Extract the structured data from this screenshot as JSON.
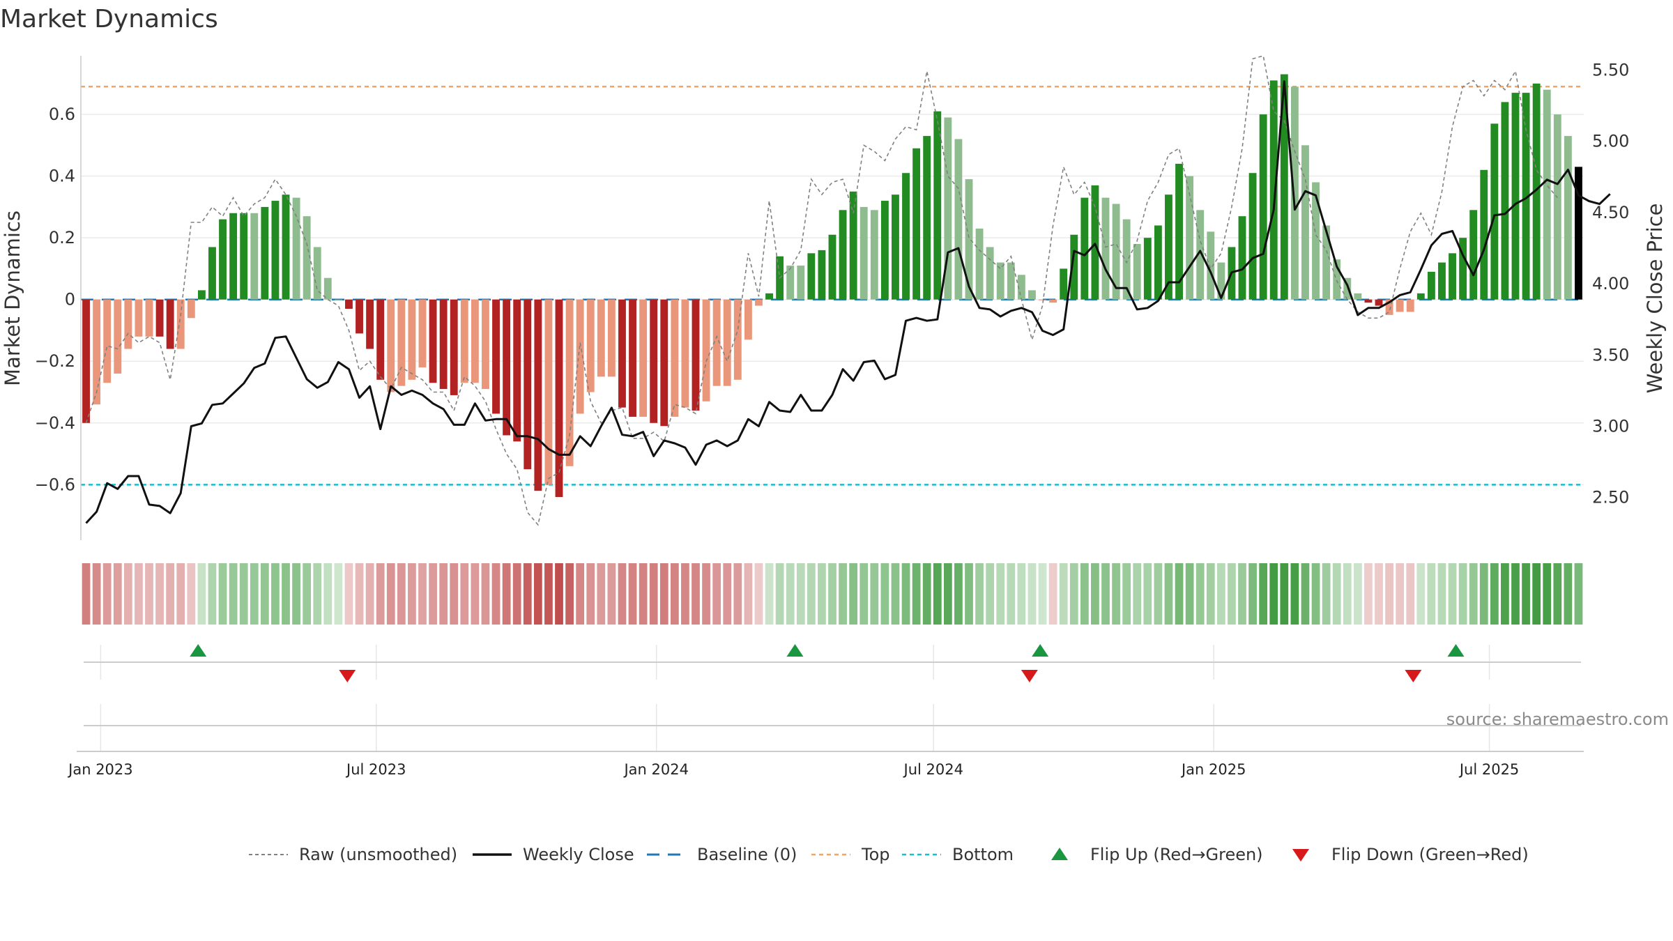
{
  "chart_data": {
    "type": "bar",
    "title": "Market Dynamics",
    "ylabel": "Market Dynamics",
    "y2label": "Weekly Close Price",
    "ylim": [
      -0.78,
      0.79
    ],
    "y2lim": [
      2.2,
      5.6
    ],
    "y_ticks": [
      "−0.6",
      "−0.4",
      "−0.2",
      "0",
      "0.2",
      "0.4",
      "0.6"
    ],
    "y2_ticks": [
      "2.50",
      "3.00",
      "3.50",
      "4.00",
      "4.50",
      "5.00",
      "5.50"
    ],
    "x_start": "2022-12-19",
    "x_end": "2025-09-01",
    "x_ticks": [
      "Jan 2023",
      "Jul 2023",
      "Jan 2024",
      "Jul 2024",
      "Jan 2025",
      "Jul 2025"
    ],
    "x_tick_dates": [
      "2023-01-01",
      "2023-07-01",
      "2024-01-01",
      "2024-07-01",
      "2025-01-01",
      "2025-07-01"
    ],
    "top_level": 0.69,
    "bottom_level": -0.6,
    "baseline": 0,
    "dynamics": [
      -0.4,
      -0.34,
      -0.27,
      -0.24,
      -0.16,
      -0.12,
      -0.12,
      -0.12,
      -0.16,
      -0.16,
      -0.06,
      0.03,
      0.17,
      0.26,
      0.28,
      0.28,
      0.28,
      0.3,
      0.32,
      0.34,
      0.33,
      0.27,
      0.17,
      0.07,
      0.0,
      -0.03,
      -0.11,
      -0.16,
      -0.26,
      -0.3,
      -0.28,
      -0.26,
      -0.22,
      -0.27,
      -0.29,
      -0.31,
      -0.27,
      -0.27,
      -0.29,
      -0.37,
      -0.44,
      -0.46,
      -0.55,
      -0.62,
      -0.6,
      -0.64,
      -0.54,
      -0.37,
      -0.3,
      -0.25,
      -0.25,
      -0.35,
      -0.38,
      -0.38,
      -0.4,
      -0.41,
      -0.38,
      -0.35,
      -0.36,
      -0.33,
      -0.28,
      -0.28,
      -0.26,
      -0.13,
      -0.02,
      0.02,
      0.14,
      0.11,
      0.11,
      0.15,
      0.16,
      0.21,
      0.29,
      0.35,
      0.3,
      0.29,
      0.32,
      0.34,
      0.41,
      0.49,
      0.53,
      0.61,
      0.59,
      0.52,
      0.39,
      0.23,
      0.17,
      0.12,
      0.12,
      0.08,
      0.03,
      0.0,
      -0.01,
      0.1,
      0.21,
      0.33,
      0.37,
      0.33,
      0.31,
      0.26,
      0.18,
      0.2,
      0.24,
      0.34,
      0.44,
      0.4,
      0.29,
      0.22,
      0.12,
      0.17,
      0.27,
      0.41,
      0.6,
      0.71,
      0.73,
      0.69,
      0.5,
      0.38,
      0.24,
      0.13,
      0.07,
      0.02,
      -0.01,
      -0.02,
      -0.05,
      -0.04,
      -0.04,
      0.02,
      0.09,
      0.12,
      0.15,
      0.2,
      0.29,
      0.42,
      0.57,
      0.64,
      0.67,
      0.67,
      0.7,
      0.68,
      0.6,
      0.53,
      0.43
    ],
    "bar_shades": [
      "#b22222",
      "#e9967a",
      "#e9967a",
      "#e9967a",
      "#e9967a",
      "#e9967a",
      "#e9967a",
      "#b22222",
      "#b22222",
      "#e9967a",
      "#e9967a",
      "#228b22",
      "#228b22",
      "#228b22",
      "#228b22",
      "#228b22",
      "#8fbc8f",
      "#228b22",
      "#228b22",
      "#228b22",
      "#8fbc8f",
      "#8fbc8f",
      "#8fbc8f",
      "#8fbc8f",
      "#8fbc8f",
      "#b22222",
      "#b22222",
      "#b22222",
      "#b22222",
      "#e9967a",
      "#e9967a",
      "#e9967a",
      "#e9967a",
      "#b22222",
      "#b22222",
      "#b22222",
      "#e9967a",
      "#e9967a",
      "#e9967a",
      "#b22222",
      "#b22222",
      "#b22222",
      "#b22222",
      "#b22222",
      "#e9967a",
      "#b22222",
      "#e9967a",
      "#e9967a",
      "#e9967a",
      "#e9967a",
      "#e9967a",
      "#b22222",
      "#b22222",
      "#e9967a",
      "#b22222",
      "#b22222",
      "#e9967a",
      "#e9967a",
      "#b22222",
      "#e9967a",
      "#e9967a",
      "#e9967a",
      "#e9967a",
      "#e9967a",
      "#e9967a",
      "#228b22",
      "#228b22",
      "#8fbc8f",
      "#8fbc8f",
      "#228b22",
      "#228b22",
      "#228b22",
      "#228b22",
      "#228b22",
      "#8fbc8f",
      "#8fbc8f",
      "#228b22",
      "#228b22",
      "#228b22",
      "#228b22",
      "#228b22",
      "#228b22",
      "#8fbc8f",
      "#8fbc8f",
      "#8fbc8f",
      "#8fbc8f",
      "#8fbc8f",
      "#8fbc8f",
      "#8fbc8f",
      "#8fbc8f",
      "#8fbc8f",
      "#e9967a",
      "#e9967a",
      "#228b22",
      "#228b22",
      "#228b22",
      "#228b22",
      "#8fbc8f",
      "#8fbc8f",
      "#8fbc8f",
      "#8fbc8f",
      "#228b22",
      "#228b22",
      "#228b22",
      "#228b22",
      "#8fbc8f",
      "#8fbc8f",
      "#8fbc8f",
      "#8fbc8f",
      "#228b22",
      "#228b22",
      "#228b22",
      "#228b22",
      "#228b22",
      "#228b22",
      "#8fbc8f",
      "#8fbc8f",
      "#8fbc8f",
      "#8fbc8f",
      "#8fbc8f",
      "#8fbc8f",
      "#8fbc8f",
      "#b22222",
      "#b22222",
      "#e9967a",
      "#e9967a",
      "#e9967a",
      "#228b22",
      "#228b22",
      "#228b22",
      "#228b22",
      "#228b22",
      "#228b22",
      "#228b22",
      "#228b22",
      "#228b22",
      "#228b22",
      "#228b22",
      "#228b22",
      "#8fbc8f",
      "#8fbc8f",
      "#8fbc8f"
    ],
    "raw": [
      -0.4,
      -0.3,
      -0.15,
      -0.16,
      -0.11,
      -0.14,
      -0.12,
      -0.14,
      -0.26,
      -0.05,
      0.25,
      0.25,
      0.3,
      0.27,
      0.33,
      0.27,
      0.31,
      0.33,
      0.39,
      0.34,
      0.27,
      0.18,
      0.03,
      0.0,
      -0.02,
      -0.1,
      -0.23,
      -0.2,
      -0.25,
      -0.29,
      -0.22,
      -0.24,
      -0.26,
      -0.3,
      -0.3,
      -0.36,
      -0.25,
      -0.28,
      -0.33,
      -0.42,
      -0.5,
      -0.55,
      -0.69,
      -0.73,
      -0.58,
      -0.56,
      -0.44,
      -0.14,
      -0.33,
      -0.4,
      -0.36,
      -0.35,
      -0.45,
      -0.45,
      -0.43,
      -0.46,
      -0.34,
      -0.35,
      -0.37,
      -0.2,
      -0.12,
      -0.2,
      -0.1,
      0.15,
      0.01,
      0.32,
      0.07,
      0.1,
      0.16,
      0.39,
      0.34,
      0.38,
      0.39,
      0.28,
      0.5,
      0.48,
      0.45,
      0.52,
      0.56,
      0.55,
      0.74,
      0.58,
      0.4,
      0.36,
      0.2,
      0.16,
      0.13,
      0.1,
      0.14,
      0.0,
      -0.13,
      -0.02,
      0.24,
      0.43,
      0.34,
      0.38,
      0.3,
      0.17,
      0.18,
      0.12,
      0.19,
      0.32,
      0.38,
      0.47,
      0.49,
      0.34,
      0.19,
      0.1,
      0.15,
      0.3,
      0.49,
      0.78,
      0.79,
      0.61,
      0.58,
      0.48,
      0.39,
      0.21,
      0.16,
      0.06,
      0.0,
      -0.04,
      -0.06,
      -0.06,
      -0.04,
      0.1,
      0.22,
      0.28,
      0.21,
      0.35,
      0.56,
      0.69,
      0.71,
      0.66,
      0.71,
      0.68,
      0.74,
      0.55,
      0.42,
      0.37,
      0.33
    ],
    "weekly_close": [
      2.32,
      2.4,
      2.6,
      2.56,
      2.65,
      2.65,
      2.45,
      2.44,
      2.39,
      2.53,
      3.0,
      3.02,
      3.15,
      3.16,
      3.23,
      3.3,
      3.41,
      3.44,
      3.62,
      3.63,
      3.48,
      3.33,
      3.27,
      3.31,
      3.45,
      3.4,
      3.2,
      3.28,
      2.98,
      3.28,
      3.22,
      3.25,
      3.22,
      3.16,
      3.12,
      3.01,
      3.01,
      3.16,
      3.04,
      3.05,
      3.05,
      2.93,
      2.93,
      2.91,
      2.84,
      2.8,
      2.8,
      2.93,
      2.86,
      3.0,
      3.13,
      2.94,
      2.93,
      2.96,
      2.79,
      2.9,
      2.88,
      2.85,
      2.73,
      2.87,
      2.9,
      2.86,
      2.9,
      3.05,
      3.0,
      3.17,
      3.11,
      3.1,
      3.22,
      3.11,
      3.11,
      3.22,
      3.4,
      3.32,
      3.45,
      3.46,
      3.33,
      3.36,
      3.74,
      3.76,
      3.74,
      3.75,
      4.22,
      4.25,
      3.98,
      3.83,
      3.82,
      3.77,
      3.81,
      3.83,
      3.8,
      3.67,
      3.64,
      3.68,
      4.23,
      4.2,
      4.28,
      4.1,
      3.97,
      3.97,
      3.82,
      3.83,
      3.88,
      4.01,
      4.01,
      4.12,
      4.23,
      4.08,
      3.9,
      4.08,
      4.1,
      4.18,
      4.21,
      4.52,
      5.42,
      4.52,
      4.65,
      4.62,
      4.37,
      4.12,
      3.99,
      3.78,
      3.83,
      3.83,
      3.87,
      3.92,
      3.94,
      4.1,
      4.27,
      4.35,
      4.37,
      4.2,
      4.06,
      4.24,
      4.48,
      4.49,
      4.56,
      4.6,
      4.66,
      4.73,
      4.7,
      4.8,
      4.62,
      4.58,
      4.56,
      4.63
    ],
    "flip_up_dates": [
      "2023-03-06",
      "2024-04-01",
      "2024-09-09",
      "2025-06-09"
    ],
    "flip_down_dates": [
      "2023-06-12",
      "2024-09-02",
      "2025-05-12"
    ],
    "source_text": "source: sharemaestro.com",
    "colors": {
      "dark_red": "#b22222",
      "light_red": "#e9967a",
      "dark_green": "#228b22",
      "light_green": "#8fbc8f",
      "close_line": "#111111",
      "raw_line": "#808080",
      "baseline": "#1f77b4",
      "top": "#f4a460",
      "bottom": "#17becf",
      "flip_up": "#1a9641",
      "flip_down": "#d7191c"
    },
    "legend": [
      {
        "key": "raw",
        "label": "Raw (unsmoothed)"
      },
      {
        "key": "close",
        "label": "Weekly Close"
      },
      {
        "key": "baseline",
        "label": "Baseline (0)"
      },
      {
        "key": "top",
        "label": "Top"
      },
      {
        "key": "bottom",
        "label": "Bottom"
      },
      {
        "key": "flip_up",
        "label": "Flip Up (Red→Green)"
      },
      {
        "key": "flip_down",
        "label": "Flip Down (Green→Red)"
      }
    ]
  }
}
